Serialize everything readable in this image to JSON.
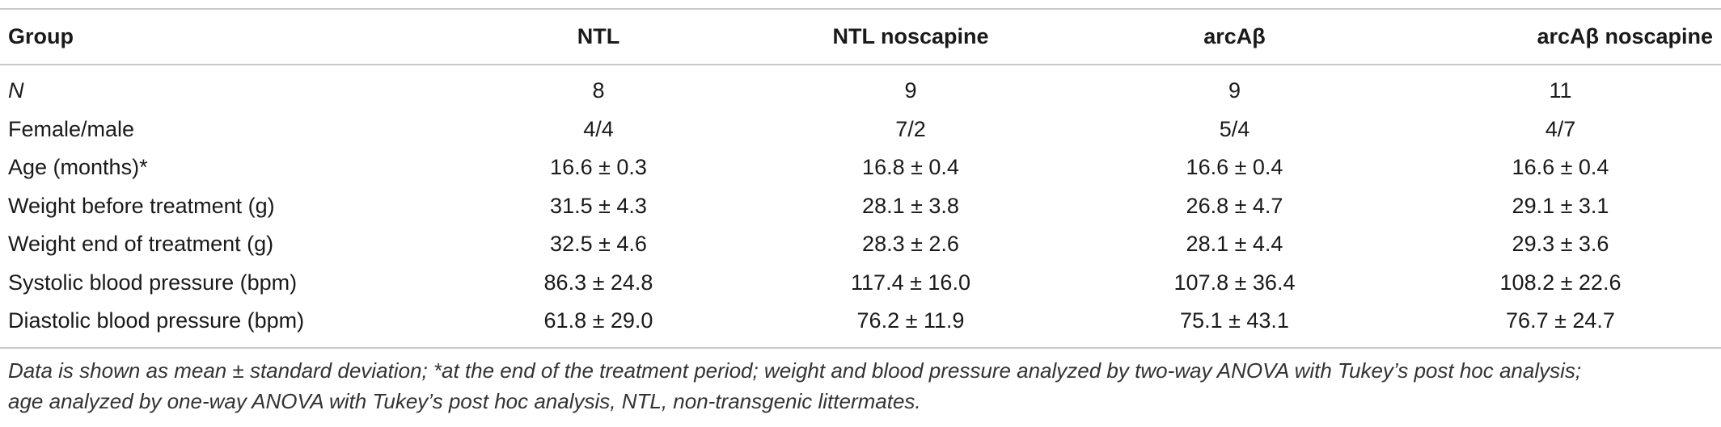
{
  "table": {
    "headers": [
      "Group",
      "NTL",
      "NTL noscapine",
      "arcAβ",
      "arcAβ noscapine"
    ],
    "rows": [
      [
        "N",
        "8",
        "9",
        "9",
        "11"
      ],
      [
        "Female/male",
        "4/4",
        "7/2",
        "5/4",
        "4/7"
      ],
      [
        "Age (months)*",
        "16.6 ± 0.3",
        "16.8 ± 0.4",
        "16.6 ± 0.4",
        "16.6 ± 0.4"
      ],
      [
        "Weight before treatment (g)",
        "31.5 ± 4.3",
        "28.1 ± 3.8",
        "26.8 ± 4.7",
        "29.1 ± 3.1"
      ],
      [
        "Weight end of treatment (g)",
        "32.5 ± 4.6",
        "28.3 ± 2.6",
        "28.1 ± 4.4",
        "29.3 ± 3.6"
      ],
      [
        "Systolic blood pressure (bpm)",
        "86.3 ± 24.8",
        "117.4 ± 16.0",
        "107.8 ± 36.4",
        "108.2 ± 22.6"
      ],
      [
        "Diastolic blood pressure (bpm)",
        "61.8 ± 29.0",
        "76.2 ± 11.9",
        "75.1 ± 43.1",
        "76.7 ± 24.7"
      ]
    ]
  },
  "footnote": {
    "line1": "Data is shown as mean ± standard deviation; *at the end of the treatment period; weight and blood pressure analyzed by two-way ANOVA with Tukey’s post hoc analysis;",
    "line2": "age analyzed by one-way ANOVA with Tukey’s post hoc analysis, NTL, non-transgenic littermates."
  },
  "colors": {
    "text": "#1a1a1a",
    "rule": "#c8c8c8",
    "background": "#ffffff"
  }
}
